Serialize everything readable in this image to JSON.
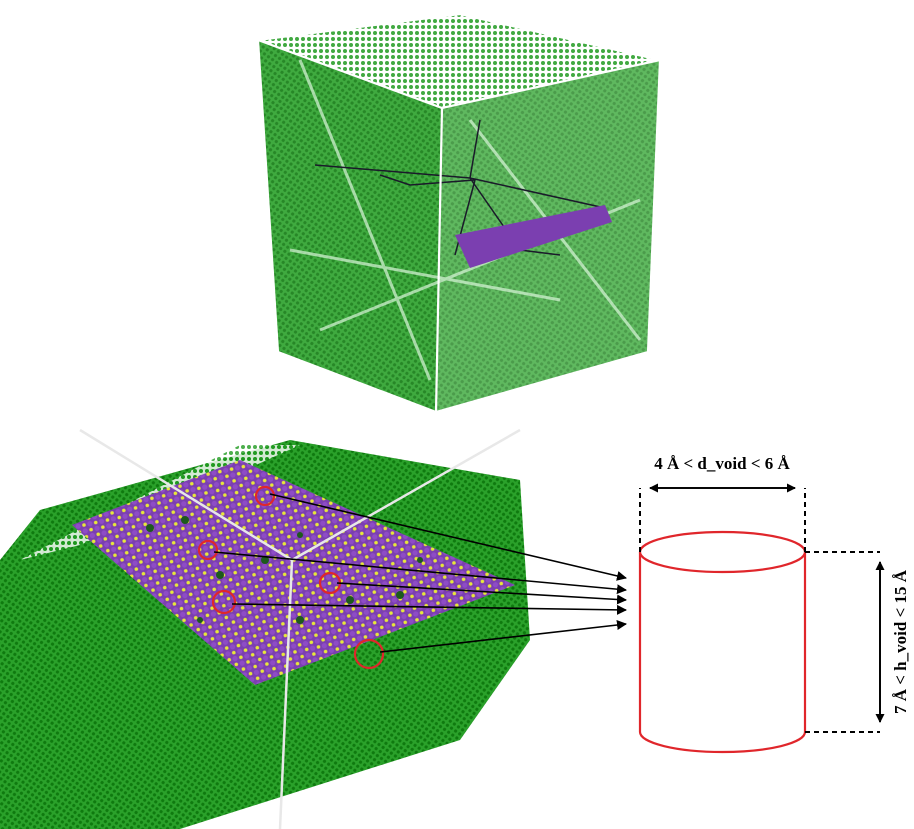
{
  "figure": {
    "width_label": "4 Å < d_void < 6 Å",
    "height_label": "7 Å < h_void < 15 Å"
  },
  "colors": {
    "lattice_green": "#1f9a1f",
    "lattice_light": "#7fd07f",
    "substrate_purple": "#7b3fb0",
    "sulfur_yellow": "#e8e83a",
    "void_red": "#e0262b",
    "box_edge": "#ffffff"
  },
  "void_count": 5
}
